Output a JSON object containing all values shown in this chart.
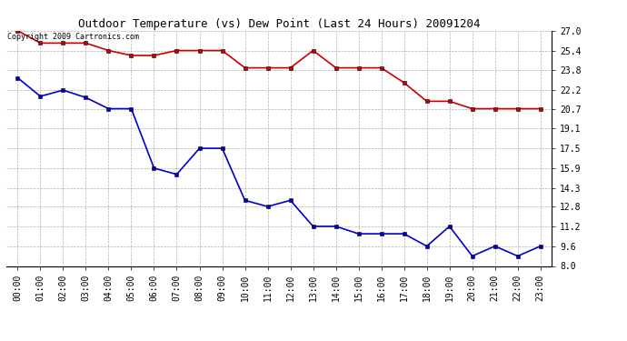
{
  "title": "Outdoor Temperature (vs) Dew Point (Last 24 Hours) 20091204",
  "copyright": "Copyright 2009 Cartronics.com",
  "hours": [
    "00:00",
    "01:00",
    "02:00",
    "03:00",
    "04:00",
    "05:00",
    "06:00",
    "07:00",
    "08:00",
    "09:00",
    "10:00",
    "11:00",
    "12:00",
    "13:00",
    "14:00",
    "15:00",
    "16:00",
    "17:00",
    "18:00",
    "19:00",
    "20:00",
    "21:00",
    "22:00",
    "23:00"
  ],
  "temp": [
    23.2,
    21.7,
    22.2,
    21.6,
    20.7,
    20.7,
    15.9,
    15.4,
    17.5,
    17.5,
    13.3,
    12.8,
    13.3,
    11.2,
    11.2,
    10.6,
    10.6,
    10.6,
    9.6,
    11.2,
    8.8,
    9.6,
    8.8,
    9.6
  ],
  "dew": [
    27.0,
    26.0,
    26.0,
    26.0,
    25.4,
    25.0,
    25.0,
    25.4,
    25.4,
    25.4,
    24.0,
    24.0,
    24.0,
    25.4,
    24.0,
    24.0,
    24.0,
    22.8,
    21.3,
    21.3,
    20.7,
    20.7,
    20.7,
    20.7
  ],
  "temp_color": "#0000cc",
  "dew_color": "#cc0000",
  "bg_color": "#ffffff",
  "grid_color": "#b0b0b0",
  "ylim_min": 8.0,
  "ylim_max": 27.0,
  "yticks": [
    8.0,
    9.6,
    11.2,
    12.8,
    14.3,
    15.9,
    17.5,
    19.1,
    20.7,
    22.2,
    23.8,
    25.4,
    27.0
  ],
  "title_fontsize": 9,
  "copyright_fontsize": 6,
  "tick_fontsize": 7,
  "marker_size": 3
}
